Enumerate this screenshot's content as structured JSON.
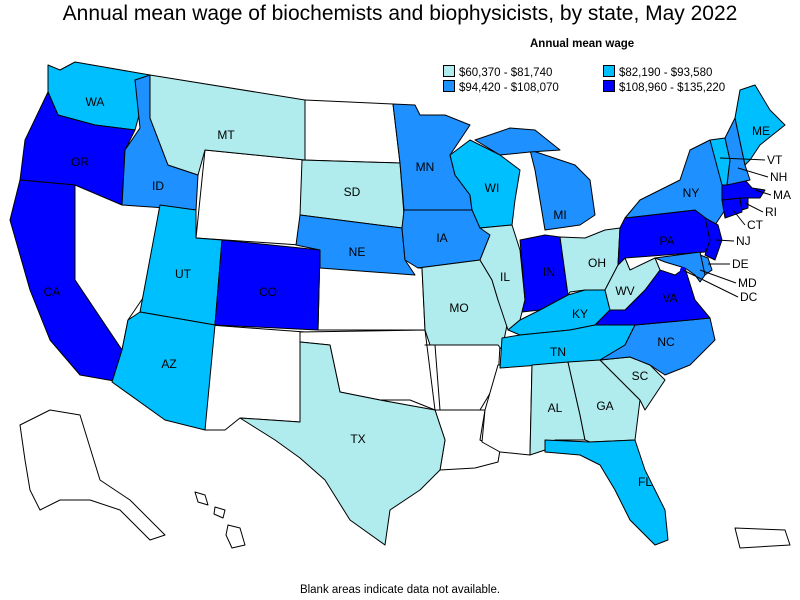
{
  "title": "Annual mean wage of biochemists and biophysicists, by state, May 2022",
  "legend": {
    "title": "Annual mean wage",
    "items": [
      {
        "label": "$60,370 - $81,740",
        "color": "#b0ecee"
      },
      {
        "label": "$82,190 - $93,580",
        "color": "#00bfff"
      },
      {
        "label": "$94,420 - $108,070",
        "color": "#1e90ff"
      },
      {
        "label": "$108,960 - $135,220",
        "color": "#0000ff"
      }
    ]
  },
  "footnote": "Blank areas indicate data not available.",
  "colors": {
    "na": "#ffffff",
    "c1": "#b0ecee",
    "c2": "#00bfff",
    "c3": "#1e90ff",
    "c4": "#0000ff"
  },
  "states": {
    "WA": {
      "label": "WA",
      "class": "c2"
    },
    "OR": {
      "label": "OR",
      "class": "c4"
    },
    "CA": {
      "label": "CA",
      "class": "c4"
    },
    "ID": {
      "label": "ID",
      "class": "c3"
    },
    "MT": {
      "label": "MT",
      "class": "c1"
    },
    "UT": {
      "label": "UT",
      "class": "c2"
    },
    "AZ": {
      "label": "AZ",
      "class": "c2"
    },
    "CO": {
      "label": "CO",
      "class": "c4"
    },
    "SD": {
      "label": "SD",
      "class": "c1"
    },
    "NE": {
      "label": "NE",
      "class": "c3"
    },
    "TX": {
      "label": "TX",
      "class": "c1"
    },
    "MN": {
      "label": "MN",
      "class": "c3"
    },
    "IA": {
      "label": "IA",
      "class": "c3"
    },
    "MO": {
      "label": "MO",
      "class": "c1"
    },
    "WI": {
      "label": "WI",
      "class": "c2"
    },
    "IL": {
      "label": "IL",
      "class": "c1"
    },
    "MI": {
      "label": "MI",
      "class": "c3"
    },
    "IN": {
      "label": "IN",
      "class": "c4"
    },
    "OH": {
      "label": "OH",
      "class": "c1"
    },
    "KY": {
      "label": "KY",
      "class": "c2"
    },
    "TN": {
      "label": "TN",
      "class": "c2"
    },
    "AL": {
      "label": "AL",
      "class": "c1"
    },
    "GA": {
      "label": "GA",
      "class": "c1"
    },
    "FL": {
      "label": "FL",
      "class": "c2"
    },
    "SC": {
      "label": "SC",
      "class": "c1"
    },
    "NC": {
      "label": "NC",
      "class": "c3"
    },
    "VA": {
      "label": "VA",
      "class": "c4"
    },
    "WV": {
      "label": "WV",
      "class": "c1"
    },
    "PA": {
      "label": "PA",
      "class": "c4"
    },
    "NY": {
      "label": "NY",
      "class": "c3"
    },
    "NJ": {
      "label": "NJ",
      "class": "c4"
    },
    "DE": {
      "label": "DE",
      "class": "c3"
    },
    "MD": {
      "label": "MD",
      "class": "c3"
    },
    "DC": {
      "label": "DC",
      "class": "c4"
    },
    "CT": {
      "label": "CT",
      "class": "c4"
    },
    "RI": {
      "label": "RI",
      "class": "c4"
    },
    "MA": {
      "label": "MA",
      "class": "c4"
    },
    "VT": {
      "label": "VT",
      "class": "c2"
    },
    "NH": {
      "label": "NH",
      "class": "c3"
    },
    "ME": {
      "label": "ME",
      "class": "c2"
    }
  }
}
